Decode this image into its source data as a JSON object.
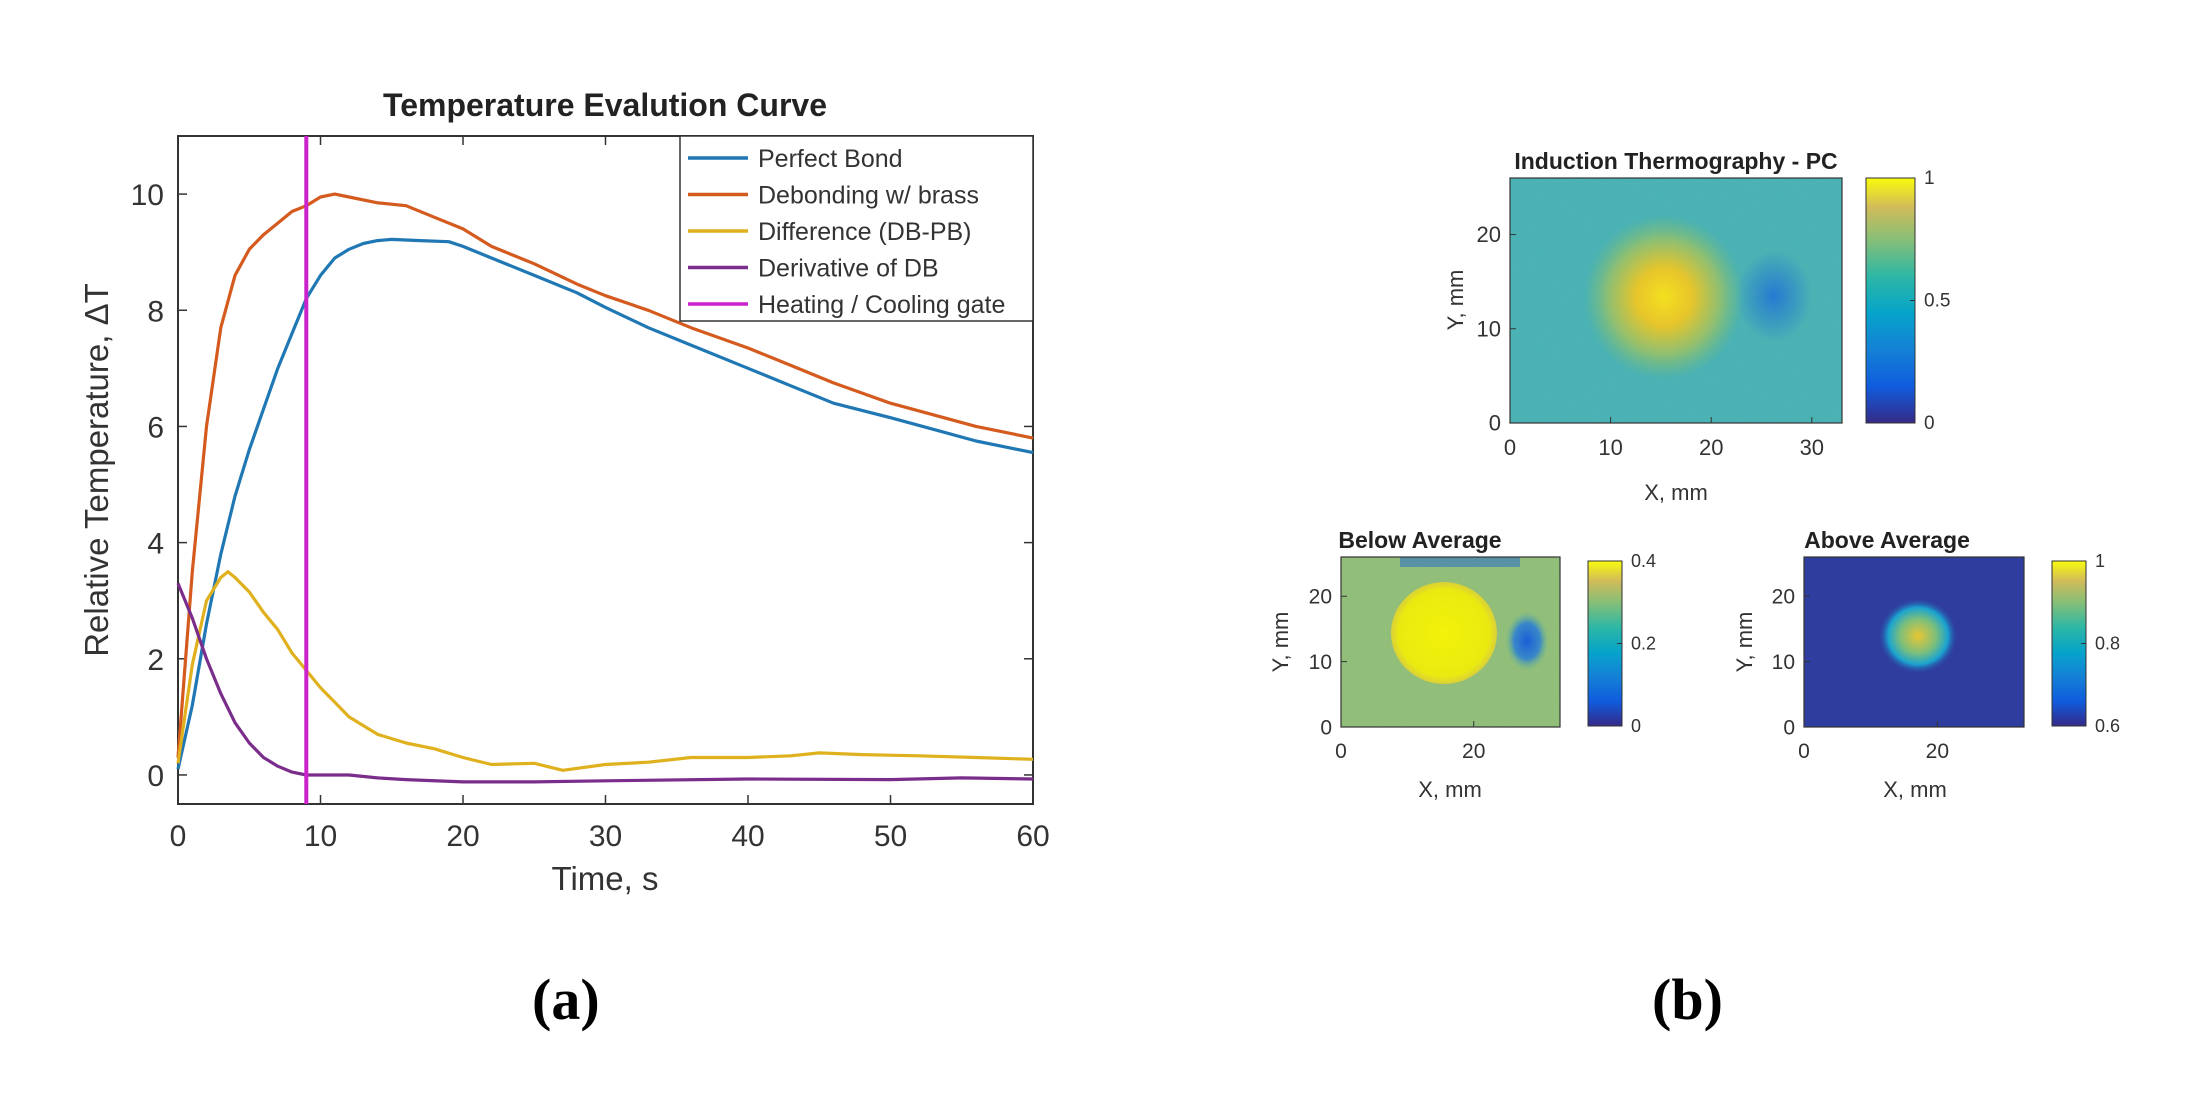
{
  "panels": {
    "a": "(a)",
    "b": "(b)"
  },
  "chart_data": [
    {
      "type": "line",
      "title": "Temperature Evalution Curve",
      "xlabel": "Time, s",
      "ylabel": "Relative Temperature, ΔT",
      "xlim": [
        0,
        60
      ],
      "ylim": [
        -0.5,
        11
      ],
      "xticks": [
        0,
        10,
        20,
        30,
        40,
        50,
        60
      ],
      "yticks": [
        0,
        2,
        4,
        6,
        8,
        10
      ],
      "legend_position": "top-right",
      "series": [
        {
          "name": "Perfect Bond",
          "color": "#1f77b4",
          "x": [
            0,
            1,
            2,
            3,
            4,
            5,
            6,
            7,
            8,
            9,
            10,
            11,
            12,
            13,
            14,
            15,
            17,
            19,
            20,
            22,
            25,
            28,
            30,
            33,
            36,
            40,
            43,
            46,
            50,
            53,
            56,
            58,
            60
          ],
          "y": [
            0.1,
            1.2,
            2.6,
            3.8,
            4.8,
            5.6,
            6.3,
            7.0,
            7.6,
            8.2,
            8.6,
            8.9,
            9.05,
            9.15,
            9.2,
            9.22,
            9.2,
            9.18,
            9.1,
            8.9,
            8.6,
            8.3,
            8.05,
            7.7,
            7.4,
            7.0,
            6.7,
            6.4,
            6.15,
            5.95,
            5.75,
            5.65,
            5.55
          ]
        },
        {
          "name": "Debonding w/ brass",
          "color": "#d45a1e",
          "x": [
            0,
            1,
            2,
            3,
            4,
            5,
            6,
            7,
            8,
            9,
            10,
            11,
            12,
            14,
            16,
            18,
            20,
            22,
            25,
            28,
            30,
            33,
            36,
            40,
            43,
            46,
            50,
            53,
            56,
            58,
            60
          ],
          "y": [
            0.3,
            3.5,
            6.0,
            7.7,
            8.6,
            9.05,
            9.3,
            9.5,
            9.7,
            9.8,
            9.95,
            10.0,
            9.95,
            9.85,
            9.8,
            9.6,
            9.4,
            9.1,
            8.8,
            8.45,
            8.25,
            8.0,
            7.7,
            7.35,
            7.05,
            6.75,
            6.4,
            6.2,
            6.0,
            5.9,
            5.8
          ]
        },
        {
          "name": "Difference (DB-PB)",
          "color": "#e0b11e",
          "x": [
            0,
            1,
            2,
            3,
            3.5,
            4,
            5,
            6,
            7,
            8,
            9,
            10,
            11,
            12,
            14,
            16,
            18,
            20,
            22,
            25,
            27,
            30,
            33,
            36,
            40,
            43,
            45,
            48,
            52,
            56,
            60
          ],
          "y": [
            0.2,
            1.9,
            3.0,
            3.4,
            3.5,
            3.4,
            3.15,
            2.8,
            2.5,
            2.1,
            1.8,
            1.5,
            1.25,
            1.0,
            0.7,
            0.55,
            0.45,
            0.3,
            0.18,
            0.2,
            0.08,
            0.18,
            0.22,
            0.3,
            0.3,
            0.33,
            0.38,
            0.35,
            0.33,
            0.3,
            0.27
          ]
        },
        {
          "name": "Derivative of DB",
          "color": "#7b2d8b",
          "x": [
            0,
            1,
            2,
            3,
            4,
            5,
            6,
            7,
            8,
            9,
            10,
            12,
            14,
            16,
            20,
            25,
            30,
            40,
            50,
            55,
            60
          ],
          "y": [
            3.3,
            2.7,
            2.0,
            1.4,
            0.9,
            0.55,
            0.3,
            0.15,
            0.05,
            0.0,
            0.0,
            0.0,
            -0.05,
            -0.08,
            -0.12,
            -0.12,
            -0.1,
            -0.07,
            -0.08,
            -0.05,
            -0.07
          ]
        },
        {
          "name": "Heating / Cooling gate",
          "color": "#cc22cc",
          "x": [
            9,
            9
          ],
          "y": [
            -0.5,
            11
          ]
        }
      ]
    },
    {
      "type": "heatmap",
      "title": "Induction Thermography - PC",
      "xlabel": "X, mm",
      "ylabel": "Y, mm",
      "xlim": [
        0,
        33
      ],
      "ylim": [
        0,
        26
      ],
      "xticks": [
        0,
        10,
        20,
        30
      ],
      "yticks": [
        0,
        10,
        20
      ],
      "colorbar_ticks": [
        "0",
        "0.5",
        "1"
      ],
      "hot_spot": {
        "x": 16,
        "y": 13,
        "peak": 0.9
      },
      "cold_spot": {
        "x": 27,
        "y": 13,
        "value": 0.2
      },
      "background_value": 0.45
    },
    {
      "type": "heatmap",
      "title": "Below Average",
      "xlabel": "X, mm",
      "ylabel": "Y, mm",
      "xlim": [
        0,
        33
      ],
      "ylim": [
        0,
        26
      ],
      "xticks": [
        0,
        20
      ],
      "yticks": [
        0,
        10,
        20
      ],
      "colorbar_ticks": [
        "0",
        "0.2",
        "0.4"
      ],
      "hot_spot": {
        "x": 15,
        "y": 14,
        "peak": 0.5
      },
      "cold_spot": {
        "x": 26.5,
        "y": 12.5,
        "value": 0.15
      },
      "background_value": 0.32
    },
    {
      "type": "heatmap",
      "title": "Above Average",
      "xlabel": "X, mm",
      "ylabel": "Y, mm",
      "xlim": [
        0,
        33
      ],
      "ylim": [
        0,
        26
      ],
      "xticks": [
        0,
        20
      ],
      "yticks": [
        0,
        10,
        20
      ],
      "colorbar_ticks": [
        "0.6",
        "0.8",
        "1"
      ],
      "hot_spot": {
        "x": 16,
        "y": 13.5,
        "peak": 0.88
      },
      "background_value": 0.55
    }
  ]
}
